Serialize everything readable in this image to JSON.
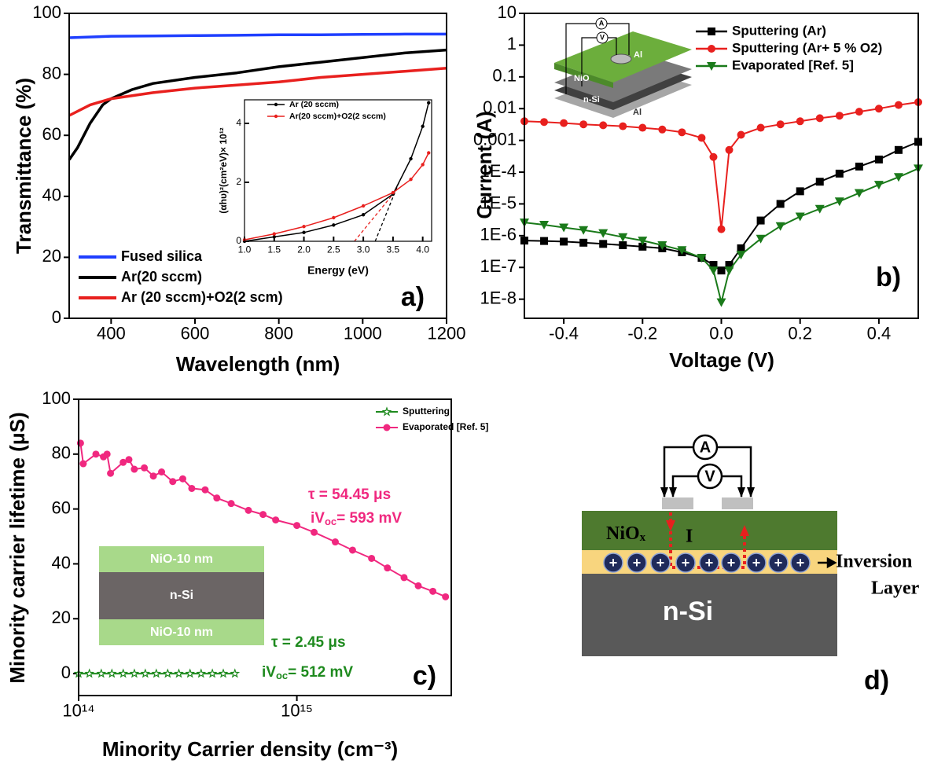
{
  "chart_data": [
    {
      "type": "line",
      "panel": "a)",
      "xlabel": "Wavelength (nm)",
      "ylabel": "Transmittance (%)",
      "xlim": [
        300,
        1200
      ],
      "ylim": [
        0,
        100
      ],
      "xticks": [
        400,
        600,
        800,
        1000,
        1200
      ],
      "yticks": [
        0,
        20,
        40,
        60,
        80,
        100
      ],
      "legend": "lower left",
      "series": [
        {
          "name": "Fused silica",
          "color": "#1f3fff",
          "x": [
            300,
            400,
            500,
            600,
            700,
            800,
            900,
            1000,
            1100,
            1200
          ],
          "values": [
            92,
            92.5,
            92.6,
            92.7,
            92.8,
            93,
            93,
            93.1,
            93.2,
            93.2
          ]
        },
        {
          "name": "Ar(20 sccm)",
          "color": "#000000",
          "x": [
            300,
            320,
            350,
            380,
            400,
            450,
            500,
            600,
            700,
            800,
            900,
            1000,
            1100,
            1200
          ],
          "values": [
            52,
            56,
            64,
            70,
            72,
            75,
            77,
            79,
            80.5,
            82.5,
            84,
            85.5,
            87,
            88
          ]
        },
        {
          "name": "Ar (20 sccm)+O2(2 scm)",
          "color": "#e8201e",
          "x": [
            300,
            350,
            400,
            500,
            600,
            700,
            800,
            900,
            1000,
            1100,
            1200
          ],
          "values": [
            66.5,
            70,
            72,
            74,
            75.5,
            76.5,
            77.5,
            79,
            80,
            81,
            82
          ]
        }
      ]
    },
    {
      "type": "line",
      "xlabel": "Energy (eV)",
      "ylabel": "(αhυ)²(cm²eV)× 10¹²",
      "xlim": [
        1.0,
        4.15
      ],
      "ylim": [
        0,
        4.8
      ],
      "xticks": [
        {
          "value": 1,
          "label": "1.0"
        },
        1.5,
        {
          "value": 2,
          "label": "2.0"
        },
        2.5,
        {
          "value": 3,
          "label": "3.0"
        },
        3.5,
        {
          "value": 4,
          "label": "4.0"
        }
      ],
      "yticks": [
        0,
        2,
        4
      ],
      "legend": "upper left",
      "series": [
        {
          "name": "Ar (20 sccm)",
          "color": "#000000",
          "marker": "circle",
          "x": [
            1.0,
            1.5,
            2.0,
            2.5,
            3.0,
            3.5,
            3.8,
            4.0,
            4.1
          ],
          "values": [
            0,
            0.15,
            0.3,
            0.55,
            0.9,
            1.6,
            2.8,
            3.9,
            4.7
          ]
        },
        {
          "name": "Ar(20 sccm)+O2(2 sccm)",
          "color": "#e8201e",
          "marker": "circle",
          "x": [
            1.0,
            1.5,
            2.0,
            2.5,
            3.0,
            3.5,
            3.8,
            4.0,
            4.1
          ],
          "values": [
            0.05,
            0.25,
            0.5,
            0.8,
            1.2,
            1.65,
            2.1,
            2.6,
            3.0
          ]
        }
      ],
      "fit_lines": [
        {
          "color": "#000000",
          "x": [
            3.2,
            3.6
          ],
          "values": [
            0,
            2.0
          ]
        },
        {
          "color": "#e8201e",
          "x": [
            2.85,
            3.5
          ],
          "values": [
            0,
            1.6
          ]
        }
      ]
    },
    {
      "type": "line",
      "panel": "b)",
      "xlabel": "Voltage (V)",
      "ylabel": "Current (A)",
      "yscale": "log",
      "xlim": [
        -0.5,
        0.5
      ],
      "ylim": [
        2.5e-09,
        10
      ],
      "xticks": [
        -0.4,
        -0.2,
        {
          "value": 0,
          "label": "0.0"
        },
        0.2,
        0.4
      ],
      "yticks": [
        10,
        1,
        0.1,
        0.01,
        0.001,
        {
          "value": 0.0001,
          "label": "1E-4"
        },
        {
          "value": 1e-05,
          "label": "1E-5"
        },
        {
          "value": 1e-06,
          "label": "1E-6"
        },
        {
          "value": 1e-07,
          "label": "1E-7"
        },
        {
          "value": 1e-08,
          "label": "1E-8"
        }
      ],
      "legend": "upper right",
      "series": [
        {
          "name": "Sputtering (Ar)",
          "color": "#000000",
          "marker": "square",
          "x": [
            -0.5,
            -0.45,
            -0.4,
            -0.35,
            -0.3,
            -0.25,
            -0.2,
            -0.15,
            -0.1,
            -0.05,
            -0.02,
            0,
            0.02,
            0.05,
            0.1,
            0.15,
            0.2,
            0.25,
            0.3,
            0.35,
            0.4,
            0.45,
            0.5
          ],
          "values": [
            7e-07,
            6.8e-07,
            6.5e-07,
            6e-07,
            5.5e-07,
            5e-07,
            4.5e-07,
            4e-07,
            3e-07,
            2e-07,
            1.2e-07,
            8e-08,
            1.2e-07,
            4e-07,
            3e-06,
            1e-05,
            2.5e-05,
            5e-05,
            9e-05,
            0.00015,
            0.00025,
            0.0005,
            0.0009
          ]
        },
        {
          "name": "Sputtering (Ar+ 5 % O2)",
          "color": "#e8201e",
          "marker": "circle",
          "x": [
            -0.5,
            -0.45,
            -0.4,
            -0.35,
            -0.3,
            -0.25,
            -0.2,
            -0.15,
            -0.1,
            -0.05,
            -0.02,
            0,
            0.02,
            0.05,
            0.1,
            0.15,
            0.2,
            0.25,
            0.3,
            0.35,
            0.4,
            0.45,
            0.5
          ],
          "values": [
            0.004,
            0.0038,
            0.0035,
            0.0032,
            0.003,
            0.0028,
            0.0025,
            0.0022,
            0.0018,
            0.0012,
            0.0003,
            1.6e-06,
            0.0005,
            0.0015,
            0.0025,
            0.0032,
            0.004,
            0.005,
            0.006,
            0.008,
            0.01,
            0.013,
            0.016
          ]
        },
        {
          "name": "Evaporated  [Ref. 5]",
          "color": "#1a7a1a",
          "marker": "triangle-down",
          "x": [
            -0.5,
            -0.45,
            -0.4,
            -0.35,
            -0.3,
            -0.25,
            -0.2,
            -0.15,
            -0.1,
            -0.05,
            -0.02,
            0,
            0.02,
            0.05,
            0.1,
            0.15,
            0.2,
            0.25,
            0.3,
            0.35,
            0.4,
            0.45,
            0.5
          ],
          "values": [
            2.6e-06,
            2.2e-06,
            1.8e-06,
            1.5e-06,
            1.2e-06,
            9e-07,
            7e-07,
            5e-07,
            3.5e-07,
            2e-07,
            8e-08,
            8e-09,
            8e-08,
            2.5e-07,
            8e-07,
            2e-06,
            4e-06,
            7e-06,
            1.2e-05,
            2.2e-05,
            4e-05,
            7e-05,
            0.00013
          ]
        }
      ],
      "schematic_labels": [
        "A",
        "V",
        "Al",
        "NiO",
        "n-Si",
        "Al"
      ]
    },
    {
      "type": "line",
      "panel": "c)",
      "xlabel": "Minority Carrier density (cm⁻³)",
      "ylabel": "Minority carrier lifetime (μS)",
      "xscale": "log",
      "xlim": [
        100000000000000.0,
        5100000000000000.0
      ],
      "ylim": [
        -8,
        100
      ],
      "xticks": [
        {
          "value": 100000000000000.0,
          "label": "10¹⁴"
        },
        {
          "value": 1000000000000000.0,
          "label": "10¹⁵"
        }
      ],
      "yticks": [
        0,
        20,
        40,
        60,
        80,
        100
      ],
      "legend": "upper right",
      "series": [
        {
          "name": "Sputtering",
          "color": "#1e8a1e",
          "marker": "star",
          "x": [
            100000000000000.0,
            112000000000000.0,
            127000000000000.0,
            142000000000000.0,
            160000000000000.0,
            180000000000000.0,
            202000000000000.0,
            227000000000000.0,
            256000000000000.0,
            288000000000000.0,
            324000000000000.0,
            364000000000000.0,
            410000000000000.0,
            460000000000000.0,
            520000000000000.0
          ],
          "values": [
            0,
            0,
            0,
            0,
            0,
            0,
            0,
            0,
            0,
            0,
            0,
            0,
            0,
            0,
            0
          ]
        },
        {
          "name": "Evaporated [Ref. 5]",
          "color": "#f0287f",
          "marker": "circle",
          "x": [
            102000000000000.0,
            105000000000000.0,
            120000000000000.0,
            130000000000000.0,
            135000000000000.0,
            140000000000000.0,
            160000000000000.0,
            170000000000000.0,
            180000000000000.0,
            200000000000000.0,
            220000000000000.0,
            240000000000000.0,
            270000000000000.0,
            300000000000000.0,
            330000000000000.0,
            380000000000000.0,
            430000000000000.0,
            500000000000000.0,
            600000000000000.0,
            700000000000000.0,
            800000000000000.0,
            1000000000000000.0,
            1200000000000000.0,
            1500000000000000.0,
            1800000000000000.0,
            2200000000000000.0,
            2600000000000000.0,
            3100000000000000.0,
            3600000000000000.0,
            4200000000000000.0,
            4800000000000000.0
          ],
          "values": [
            84,
            76.5,
            80,
            79,
            80,
            73,
            77,
            78,
            74.5,
            75,
            72,
            73.5,
            70,
            71,
            67.5,
            67,
            64,
            62,
            59.5,
            58,
            56,
            54,
            51.5,
            48,
            45,
            42,
            38.5,
            35,
            32,
            30,
            28
          ]
        }
      ],
      "annotations": [
        {
          "text": "τ  = 54.45 μs",
          "color": "#f0287f"
        },
        {
          "prefix": "iV",
          "sub": "oc",
          "suffix": "= 593 mV",
          "color": "#f0287f"
        },
        {
          "text": "τ  = 2.45 μs",
          "color": "#1e8a1e"
        },
        {
          "prefix": "iV",
          "sub": "oc",
          "suffix": "= 512 mV",
          "color": "#1e8a1e"
        }
      ],
      "stack_labels": [
        "NiO-10 nm",
        "n-Si",
        "NiO-10 nm"
      ]
    }
  ],
  "diagram": {
    "panel": "d)",
    "ammeter": "A",
    "voltmeter": "V",
    "layer": "NiO",
    "layer_sub": "x",
    "current": "I",
    "ion": "+",
    "inversion": [
      "Inversion",
      "Layer"
    ],
    "substrate": "n-Si"
  }
}
